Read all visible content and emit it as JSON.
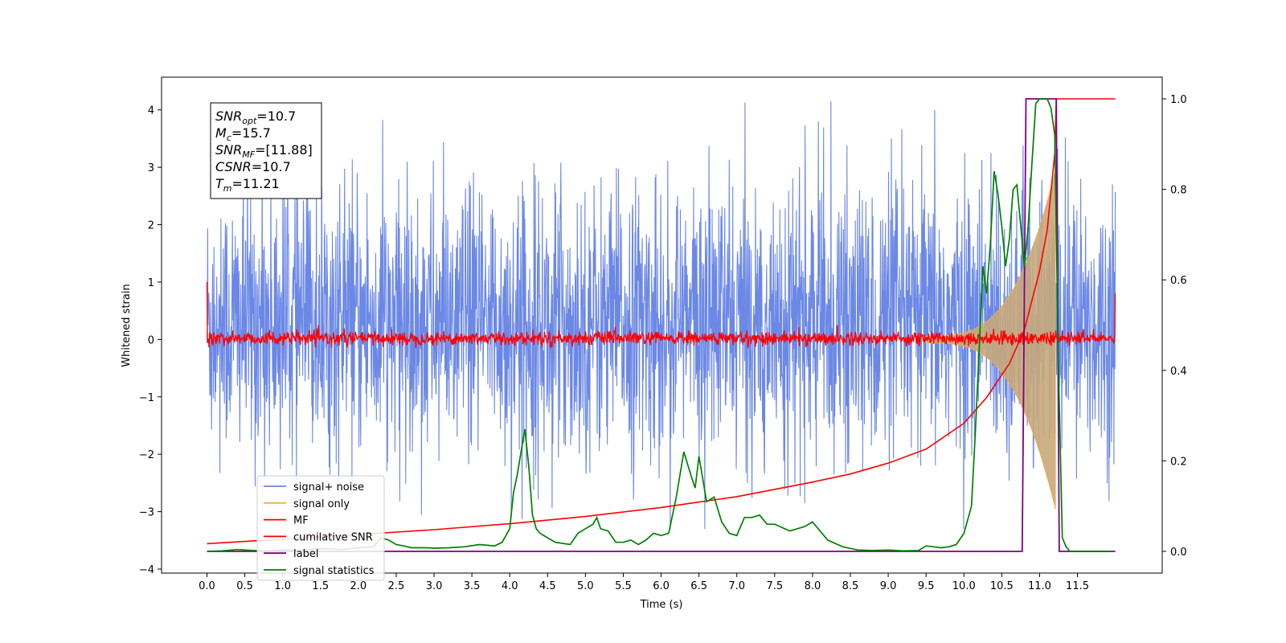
{
  "chart_data": {
    "type": "line",
    "title": "",
    "xlabel": "Time (s)",
    "ylabel": "Whitened strain",
    "y2label": "",
    "xlim": [
      -0.6,
      12.62
    ],
    "ylim": [
      -4.07,
      4.57
    ],
    "y2lim": [
      -0.048,
      1.048
    ],
    "x_ticks": [
      0.0,
      0.5,
      1.0,
      1.5,
      2.0,
      2.5,
      3.0,
      3.5,
      4.0,
      4.5,
      5.0,
      5.5,
      6.0,
      6.5,
      7.0,
      7.5,
      8.0,
      8.5,
      9.0,
      9.5,
      10.0,
      10.5,
      11.0,
      11.5
    ],
    "x_tick_labels": [
      "0.0",
      "0.5",
      "1.0",
      "1.5",
      "2.0",
      "2.5",
      "3.0",
      "3.5",
      "4.0",
      "4.5",
      "5.0",
      "5.5",
      "6.0",
      "6.5",
      "7.0",
      "7.5",
      "8.0",
      "8.5",
      "9.0",
      "9.5",
      "10.0",
      "10.5",
      "11.0",
      "11.5"
    ],
    "y_ticks": [
      4,
      3,
      2,
      1,
      0,
      -1,
      -2,
      -3,
      -4
    ],
    "y_tick_labels": [
      "4",
      "3",
      "2",
      "1",
      "0",
      "−1",
      "−2",
      "−3",
      "−4"
    ],
    "y2_ticks": [
      1.0,
      0.8,
      0.6,
      0.4,
      0.2,
      0.0
    ],
    "y2_tick_labels": [
      "1.0",
      "0.8",
      "0.6",
      "0.4",
      "0.2",
      "0.0"
    ],
    "grid": false,
    "legend_position": "lower-left",
    "colors": {
      "signal_noise": "#6b88e6",
      "signal_only": "#f5b042",
      "signal_only_fill": "#c8a87a",
      "mf": "#ff0000",
      "cumulative_snr": "#ff0000",
      "label": "#800080",
      "signal_statistics": "#008000"
    },
    "series": [
      {
        "name": "signal+ noise",
        "axis": "left",
        "description_values": {
          "t_start": 0.0,
          "t_end": 12.0,
          "typical_band": [
            -1.6,
            2.2
          ],
          "extremes": [
            -3.3,
            4.15
          ]
        }
      },
      {
        "name": "signal only",
        "axis": "left",
        "chirp": {
          "t_start": 9.5,
          "t_merge": 11.21,
          "max_amplitude": 2.9
        }
      },
      {
        "name": "MF",
        "axis": "left",
        "description_values": {
          "center": 0.0,
          "band": [
            -0.15,
            0.2
          ],
          "start_value": 1.0,
          "end_value": 0.8
        }
      },
      {
        "name": "cumilative SNR",
        "axis": "right",
        "x": [
          0.0,
          1.0,
          2.0,
          3.0,
          4.0,
          5.0,
          6.0,
          7.0,
          8.0,
          8.5,
          9.0,
          9.5,
          10.0,
          10.3,
          10.6,
          10.8,
          11.0,
          11.1,
          11.2,
          11.22,
          12.0
        ],
        "values": [
          0.017,
          0.027,
          0.037,
          0.048,
          0.061,
          0.077,
          0.097,
          0.121,
          0.153,
          0.171,
          0.195,
          0.226,
          0.283,
          0.34,
          0.415,
          0.49,
          0.62,
          0.71,
          0.88,
          1.0,
          1.0
        ]
      },
      {
        "name": "label",
        "axis": "right",
        "x": [
          0.0,
          10.77,
          10.82,
          11.22,
          11.26,
          12.0
        ],
        "values": [
          0.0,
          0.0,
          1.0,
          1.0,
          0.0,
          0.0
        ]
      },
      {
        "name": "signal statistics",
        "axis": "right",
        "x": [
          0.0,
          0.2,
          0.4,
          0.6,
          0.8,
          1.0,
          1.2,
          1.4,
          1.6,
          1.8,
          2.0,
          2.2,
          2.3,
          2.4,
          2.5,
          2.6,
          2.7,
          2.9,
          3.0,
          3.2,
          3.4,
          3.6,
          3.8,
          3.9,
          4.0,
          4.05,
          4.1,
          4.15,
          4.2,
          4.25,
          4.3,
          4.35,
          4.4,
          4.5,
          4.6,
          4.8,
          4.9,
          5.0,
          5.1,
          5.15,
          5.2,
          5.3,
          5.4,
          5.5,
          5.6,
          5.7,
          5.8,
          5.9,
          6.0,
          6.1,
          6.2,
          6.3,
          6.4,
          6.45,
          6.5,
          6.55,
          6.6,
          6.7,
          6.8,
          6.9,
          7.0,
          7.1,
          7.2,
          7.3,
          7.4,
          7.5,
          7.7,
          7.8,
          7.9,
          8.0,
          8.1,
          8.2,
          8.4,
          8.6,
          8.8,
          9.0,
          9.2,
          9.4,
          9.5,
          9.6,
          9.7,
          9.8,
          9.9,
          10.0,
          10.1,
          10.15,
          10.2,
          10.25,
          10.3,
          10.35,
          10.4,
          10.45,
          10.5,
          10.55,
          10.6,
          10.65,
          10.7,
          10.75,
          10.8,
          10.85,
          10.9,
          10.95,
          11.0,
          11.05,
          11.1,
          11.15,
          11.2,
          11.25,
          11.3,
          11.35,
          11.4,
          11.6,
          11.8,
          11.95
        ],
        "values": [
          0.0,
          0.001,
          0.004,
          0.002,
          0.001,
          0.003,
          0.002,
          0.005,
          0.006,
          0.004,
          0.008,
          0.01,
          0.03,
          0.025,
          0.015,
          0.012,
          0.008,
          0.008,
          0.007,
          0.008,
          0.01,
          0.015,
          0.012,
          0.02,
          0.05,
          0.13,
          0.17,
          0.22,
          0.27,
          0.19,
          0.08,
          0.05,
          0.04,
          0.03,
          0.02,
          0.015,
          0.04,
          0.05,
          0.06,
          0.075,
          0.05,
          0.045,
          0.02,
          0.02,
          0.025,
          0.015,
          0.025,
          0.04,
          0.035,
          0.04,
          0.12,
          0.22,
          0.165,
          0.14,
          0.21,
          0.16,
          0.11,
          0.12,
          0.065,
          0.04,
          0.035,
          0.075,
          0.075,
          0.08,
          0.06,
          0.06,
          0.045,
          0.05,
          0.055,
          0.065,
          0.045,
          0.025,
          0.01,
          0.003,
          0.002,
          0.003,
          0.001,
          0.002,
          0.012,
          0.01,
          0.008,
          0.01,
          0.015,
          0.04,
          0.1,
          0.26,
          0.44,
          0.63,
          0.57,
          0.68,
          0.84,
          0.79,
          0.72,
          0.63,
          0.69,
          0.8,
          0.81,
          0.72,
          0.63,
          0.72,
          0.86,
          0.99,
          1.0,
          1.0,
          1.0,
          0.98,
          0.92,
          0.4,
          0.03,
          0.01,
          0.0,
          0.0,
          0.0,
          0.0
        ]
      }
    ],
    "legend": [
      {
        "label": "signal+ noise",
        "color": "#6b88e6"
      },
      {
        "label": "signal only",
        "color": "#f5b042"
      },
      {
        "label": "MF",
        "color": "#ff0000"
      },
      {
        "label": "cumilative SNR",
        "color": "#ff0000"
      },
      {
        "label": "label",
        "color": "#800080"
      },
      {
        "label": "signal statistics",
        "color": "#008000"
      }
    ],
    "annotation": {
      "lines": [
        {
          "sym": "SNR",
          "sub": "opt",
          "value": "=10.7"
        },
        {
          "sym": "M",
          "sub": "c",
          "value": "=15.7"
        },
        {
          "sym": "SNR",
          "sub": "MF",
          "value": "=[11.88]"
        },
        {
          "sym": "CSNR",
          "sub": "",
          "value": "=10.7"
        },
        {
          "sym": "T",
          "sub": "m",
          "value": "=11.21"
        }
      ]
    }
  }
}
